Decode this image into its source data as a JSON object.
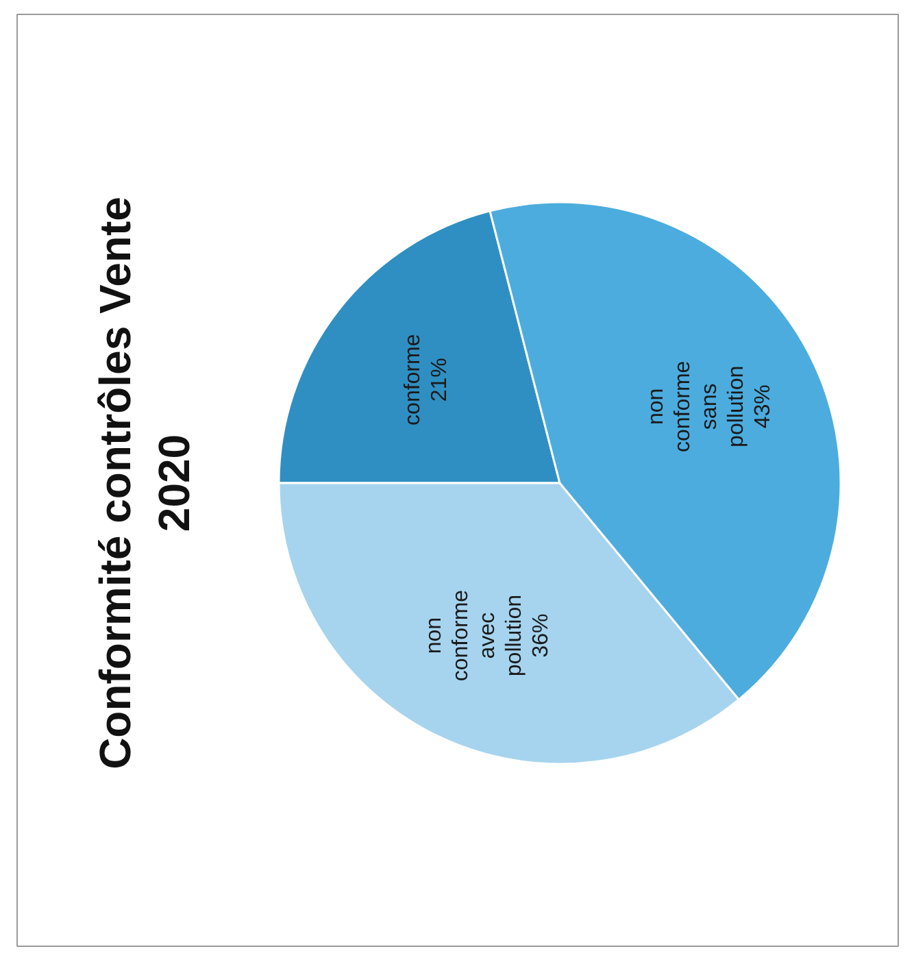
{
  "chart_data": {
    "type": "pie",
    "title": "Conformité contrôles Vente 2020",
    "categories": [
      "conforme",
      "non conforme avec pollution",
      "non conforme sans pollution"
    ],
    "values": [
      21,
      36,
      43
    ],
    "value_labels": [
      "21%",
      "36%",
      "43%"
    ],
    "colors": [
      "#2f8fc2",
      "#a6d4ef",
      "#4cacde"
    ]
  }
}
